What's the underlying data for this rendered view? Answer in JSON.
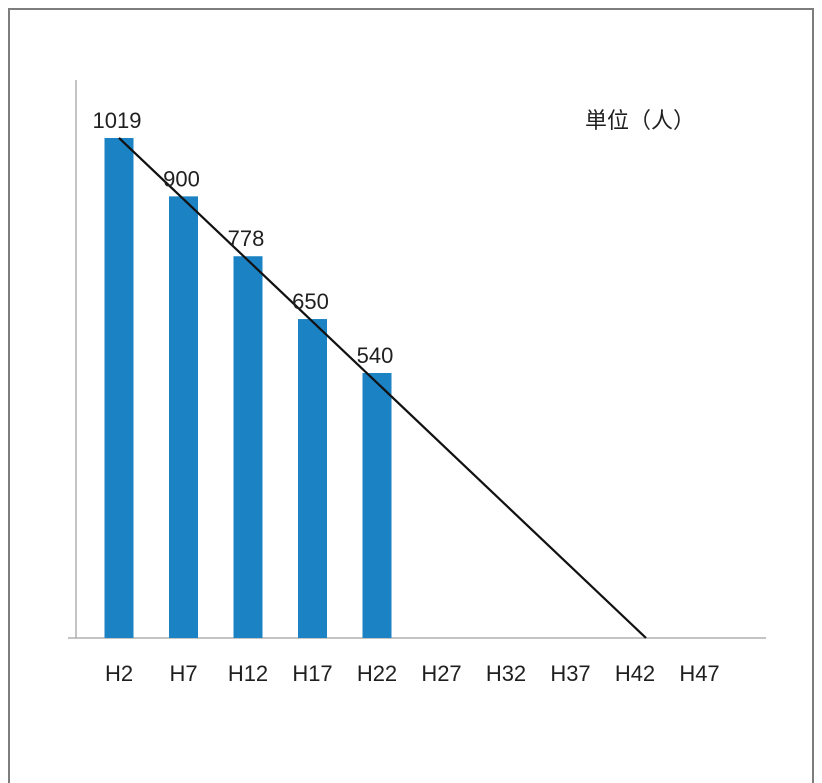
{
  "chart_data": {
    "type": "bar",
    "categories": [
      "H2",
      "H7",
      "H12",
      "H17",
      "H22",
      "H27",
      "H32",
      "H37",
      "H42",
      "H47"
    ],
    "series": [
      {
        "values": [
          1019,
          900,
          778,
          650,
          540,
          null,
          null,
          null,
          null,
          null
        ]
      }
    ],
    "trendline": {
      "from": {
        "category": "H2",
        "value": 1019
      },
      "to": {
        "category": "H42",
        "value": 0
      }
    },
    "unit_label": "単位（人）",
    "ylim": [
      0,
      1100
    ],
    "grid": false,
    "colors": {
      "bar": "#1b82c3",
      "trendline": "#111111",
      "axis": "#b0b0b0",
      "frame": "#7d7d7d"
    }
  }
}
